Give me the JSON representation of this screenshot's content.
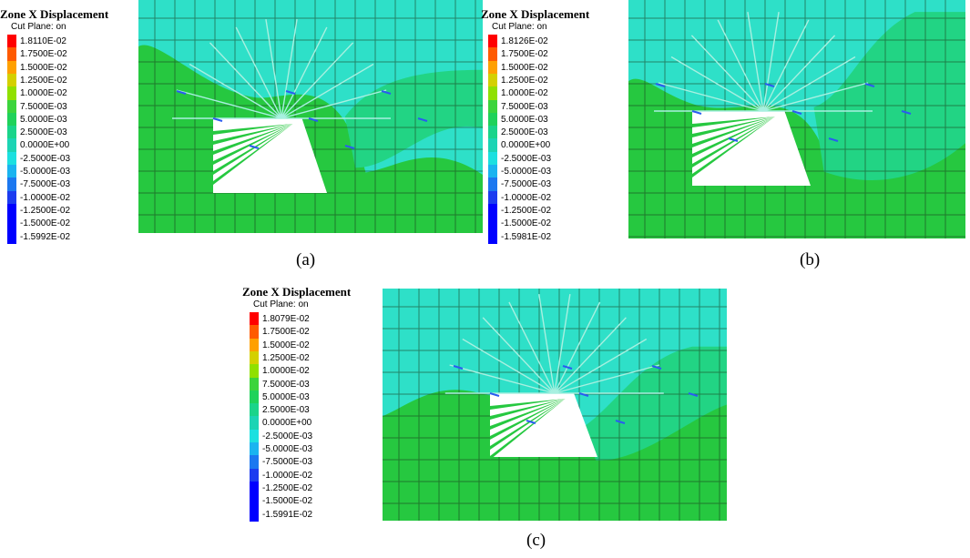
{
  "colors": {
    "scale": [
      "#ff0000",
      "#ff5a00",
      "#ffa000",
      "#d4d000",
      "#90e000",
      "#3cd43c",
      "#1fd25a",
      "#1ad48a",
      "#1cd4b4",
      "#1ce0e0",
      "#1ab4f0",
      "#1c78f0",
      "#1c3cf0",
      "#0000ff"
    ],
    "green_zone": "#26c840",
    "cyan_zone": "#2ee0c8",
    "mid_zone": "#22d484",
    "excavation": "#ffffff",
    "grid_line": "#1a3a1a"
  },
  "panels": [
    {
      "legend": {
        "title": "Zone X Displacement",
        "subtitle": "Cut Plane: on",
        "values": [
          "1.8110E-02",
          "1.7500E-02",
          "1.5000E-02",
          "1.2500E-02",
          "1.0000E-02",
          "7.5000E-03",
          "5.0000E-03",
          "2.5000E-03",
          "0.0000E+00",
          "-2.5000E-03",
          "-5.0000E-03",
          "-7.5000E-03",
          "-1.0000E-02",
          "-1.2500E-02",
          "-1.5000E-02",
          "-1.5992E-02"
        ]
      },
      "caption": "(a)"
    },
    {
      "legend": {
        "title": "Zone X Displacement",
        "subtitle": "Cut Plane: on",
        "values": [
          "1.8126E-02",
          "1.7500E-02",
          "1.5000E-02",
          "1.2500E-02",
          "1.0000E-02",
          "7.5000E-03",
          "5.0000E-03",
          "2.5000E-03",
          "0.0000E+00",
          "-2.5000E-03",
          "-5.0000E-03",
          "-7.5000E-03",
          "-1.0000E-02",
          "-1.2500E-02",
          "-1.5000E-02",
          "-1.5981E-02"
        ]
      },
      "caption": "(b)"
    },
    {
      "legend": {
        "title": "Zone X Displacement",
        "subtitle": "Cut Plane: on",
        "values": [
          "1.8079E-02",
          "1.7500E-02",
          "1.5000E-02",
          "1.2500E-02",
          "1.0000E-02",
          "7.5000E-03",
          "5.0000E-03",
          "2.5000E-03",
          "0.0000E+00",
          "-2.5000E-03",
          "-5.0000E-03",
          "-7.5000E-03",
          "-1.0000E-02",
          "-1.2500E-02",
          "-1.5000E-02",
          "-1.5991E-02"
        ]
      },
      "caption": "(c)"
    }
  ]
}
